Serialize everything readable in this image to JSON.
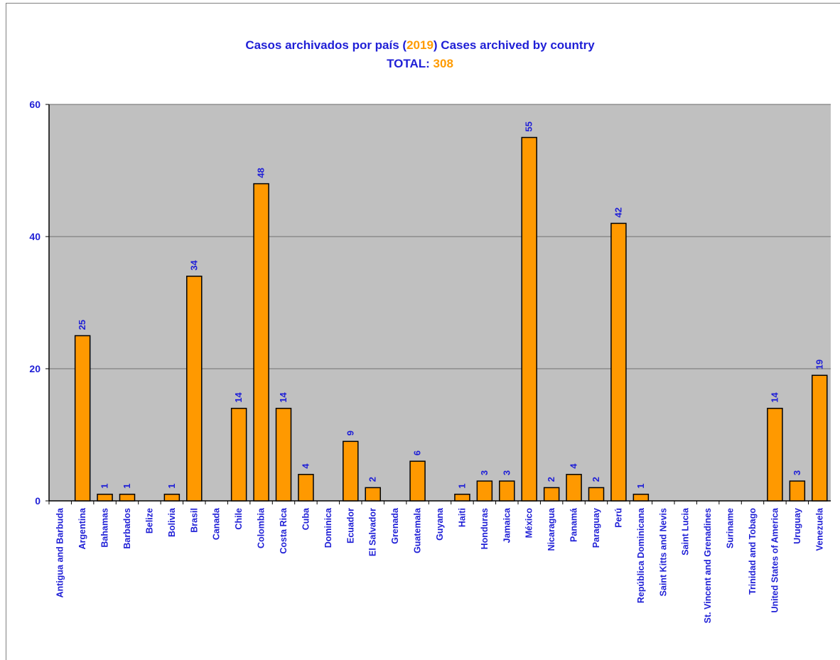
{
  "title": {
    "line1_part1": "Casos archivados por país (",
    "line1_year": "2019",
    "line1_part2": ") Cases archived by country",
    "line2_label": "TOTAL:",
    "line2_value": "308"
  },
  "colors": {
    "bar_fill": "#ff9900",
    "bar_stroke": "#000000",
    "plot_bg": "#c0c0c0",
    "text_blue": "#1f1fd6",
    "accent_orange": "#ff9b00",
    "gridline": "#7f7f7f"
  },
  "chart_data": {
    "type": "bar",
    "title": "Casos archivados por país (2019) Cases archived by country",
    "subtitle": "TOTAL: 308",
    "xlabel": "",
    "ylabel": "",
    "ylim": [
      0,
      60
    ],
    "yticks": [
      0,
      20,
      40,
      60
    ],
    "grid": true,
    "legend": "none",
    "categories": [
      "Antigua and Barbuda",
      "Argentina",
      "Bahamas",
      "Barbados",
      "Belize",
      "Bolivia",
      "Brasil",
      "Canada",
      "Chile",
      "Colombia",
      "Costa Rica",
      "Cuba",
      "Dominica",
      "Ecuador",
      "El Salvador",
      "Grenada",
      "Guatemala",
      "Guyana",
      "Haiti",
      "Honduras",
      "Jamaica",
      "México",
      "Nicaragua",
      "Panamá",
      "Paraguay",
      "Perú",
      "República Dominicana",
      "Saint Kitts and Nevis",
      "Saint Lucia",
      "St. Vincent and Grenadines",
      "Suriname",
      "Trinidad and Tobago",
      "United States of America",
      "Uruguay",
      "Venezuela"
    ],
    "values": [
      0,
      25,
      1,
      1,
      0,
      1,
      34,
      0,
      14,
      48,
      14,
      4,
      0,
      9,
      2,
      0,
      6,
      0,
      1,
      3,
      3,
      55,
      2,
      4,
      2,
      42,
      1,
      0,
      0,
      0,
      0,
      0,
      14,
      3,
      19
    ]
  }
}
